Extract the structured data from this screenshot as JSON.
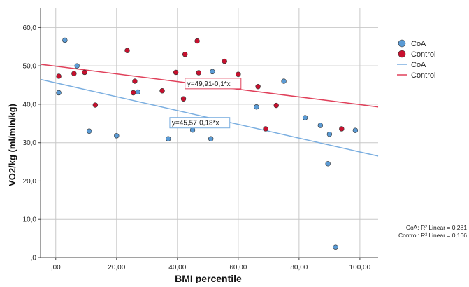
{
  "chart_data": {
    "type": "scatter",
    "xlabel": "BMI percentile",
    "ylabel": "VO2/kg (ml/min/kg)",
    "xlim": [
      -5,
      106
    ],
    "ylim": [
      0,
      65
    ],
    "x_ticks": [
      0,
      20,
      40,
      60,
      80,
      100
    ],
    "x_tick_labels": [
      ",00",
      "20,00",
      "40,00",
      "60,00",
      "80,00",
      "100,00"
    ],
    "y_ticks": [
      0,
      10,
      20,
      30,
      40,
      50,
      60
    ],
    "y_tick_labels": [
      ",0",
      "10,0",
      "20,0",
      "30,0",
      "40,0",
      "50,0",
      "60,0"
    ],
    "grid": true,
    "legend_position": "right",
    "series": [
      {
        "name": "CoA",
        "color": "#5b9bd5",
        "points": [
          [
            1,
            43
          ],
          [
            3,
            56.7
          ],
          [
            7,
            50
          ],
          [
            11,
            33
          ],
          [
            20,
            31.8
          ],
          [
            27,
            43.2
          ],
          [
            37,
            31
          ],
          [
            45,
            33.3
          ],
          [
            51,
            31
          ],
          [
            51.5,
            48.5
          ],
          [
            66,
            39.3
          ],
          [
            75,
            46
          ],
          [
            82,
            36.5
          ],
          [
            87,
            34.5
          ],
          [
            89.5,
            24.5
          ],
          [
            90,
            32.2
          ],
          [
            92,
            2.7
          ],
          [
            98.5,
            33.2
          ]
        ]
      },
      {
        "name": "Control",
        "color": "#c8102e",
        "points": [
          [
            1,
            47.3
          ],
          [
            6,
            48
          ],
          [
            9.5,
            48.3
          ],
          [
            13,
            39.8
          ],
          [
            23.5,
            54
          ],
          [
            25.5,
            43
          ],
          [
            26,
            46
          ],
          [
            35,
            43.5
          ],
          [
            39.5,
            48.3
          ],
          [
            42,
            41.4
          ],
          [
            42.5,
            53
          ],
          [
            46.5,
            56.5
          ],
          [
            47,
            48.2
          ],
          [
            55.5,
            51.2
          ],
          [
            60,
            47.8
          ],
          [
            66.5,
            44.6
          ],
          [
            69,
            33.6
          ],
          [
            72.5,
            39.7
          ],
          [
            94,
            33.6
          ]
        ]
      }
    ],
    "fit_lines": [
      {
        "name": "CoA",
        "color": "#7aaee0",
        "intercept": 45.57,
        "slope": -0.18,
        "label": "y=45,57-0,18*x",
        "label_at": [
          37.5,
          35.2
        ],
        "r2_text": "CoA: R² Linear = 0,281"
      },
      {
        "name": "Control",
        "color": "#e0405a",
        "intercept": 49.91,
        "slope": -0.1,
        "label": "y=49,91-0,1*x",
        "label_at": [
          42.5,
          45.4
        ],
        "r2_text": "Control: R² Linear = 0,166"
      }
    ]
  }
}
